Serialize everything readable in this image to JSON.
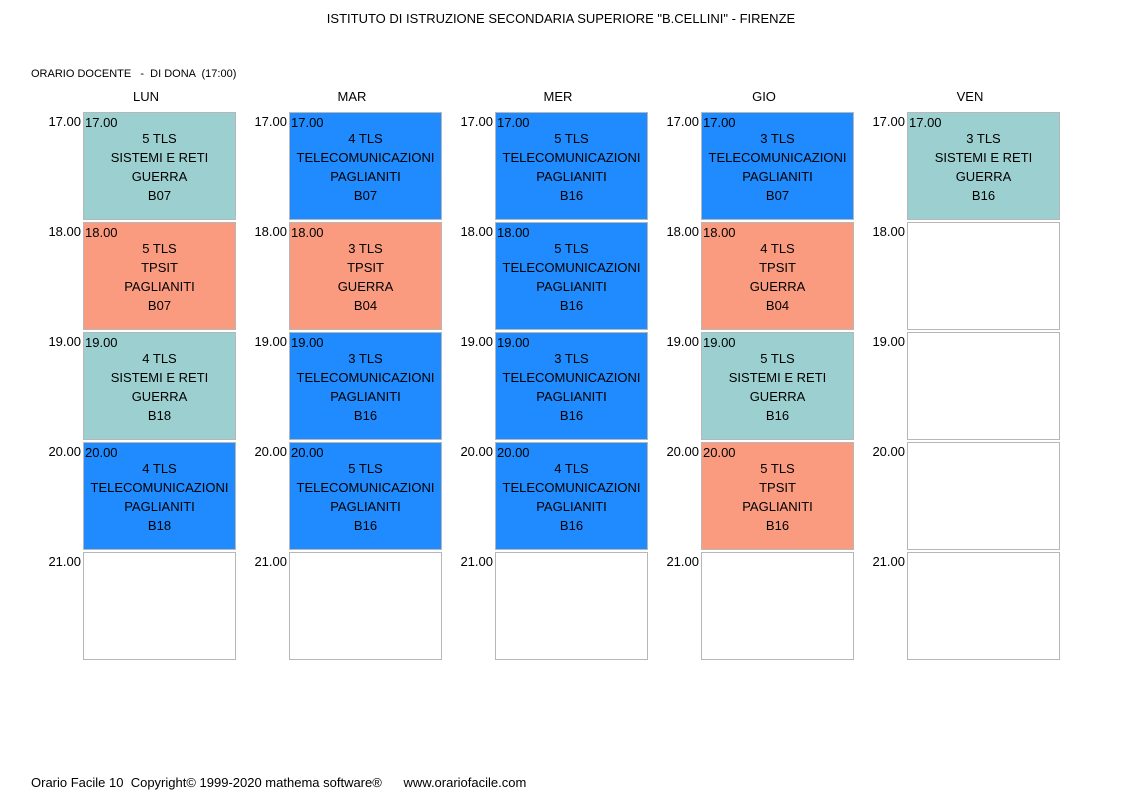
{
  "header": {
    "title": "ISTITUTO DI ISTRUZIONE SECONDARIA SUPERIORE \"B.CELLINI\" - FIRENZE",
    "subtitle": "ORARIO DOCENTE   -  DI DONA  (17:00)"
  },
  "footer": {
    "text": "Orario Facile 10  Copyright© 1999-2020 mathema software®      www.orariofacile.com"
  },
  "times": [
    "17.00",
    "18.00",
    "19.00",
    "20.00",
    "21.00"
  ],
  "colors": {
    "sistemi": "#9ccfcf",
    "tpsit": "#fa9b80",
    "telecomunicazioni": "#1f8bff",
    "border": "#b7b7b7"
  },
  "days": [
    {
      "name": "LUN",
      "slots": [
        {
          "time": "17.00",
          "class": "5 TLS",
          "subject": "SISTEMI E RETI",
          "teacher": "GUERRA",
          "room": "B07",
          "type": "ses"
        },
        {
          "time": "18.00",
          "class": "5 TLS",
          "subject": "TPSIT",
          "teacher": "PAGLIANITI",
          "room": "B07",
          "type": "tpsit"
        },
        {
          "time": "19.00",
          "class": "4 TLS",
          "subject": "SISTEMI E RETI",
          "teacher": "GUERRA",
          "room": "B18",
          "type": "ses"
        },
        {
          "time": "20.00",
          "class": "4 TLS",
          "subject": "TELECOMUNICAZIONI",
          "teacher": "PAGLIANITI",
          "room": "B18",
          "type": "tele"
        },
        null
      ]
    },
    {
      "name": "MAR",
      "slots": [
        {
          "time": "17.00",
          "class": "4 TLS",
          "subject": "TELECOMUNICAZIONI",
          "teacher": "PAGLIANITI",
          "room": "B07",
          "type": "tele"
        },
        {
          "time": "18.00",
          "class": "3 TLS",
          "subject": "TPSIT",
          "teacher": "GUERRA",
          "room": "B04",
          "type": "tpsit"
        },
        {
          "time": "19.00",
          "class": "3 TLS",
          "subject": "TELECOMUNICAZIONI",
          "teacher": "PAGLIANITI",
          "room": "B16",
          "type": "tele"
        },
        {
          "time": "20.00",
          "class": "5 TLS",
          "subject": "TELECOMUNICAZIONI",
          "teacher": "PAGLIANITI",
          "room": "B16",
          "type": "tele"
        },
        null
      ]
    },
    {
      "name": "MER",
      "slots": [
        {
          "time": "17.00",
          "class": "5 TLS",
          "subject": "TELECOMUNICAZIONI",
          "teacher": "PAGLIANITI",
          "room": "B16",
          "type": "tele"
        },
        {
          "time": "18.00",
          "class": "5 TLS",
          "subject": "TELECOMUNICAZIONI",
          "teacher": "PAGLIANITI",
          "room": "B16",
          "type": "tele"
        },
        {
          "time": "19.00",
          "class": "3 TLS",
          "subject": "TELECOMUNICAZIONI",
          "teacher": "PAGLIANITI",
          "room": "B16",
          "type": "tele"
        },
        {
          "time": "20.00",
          "class": "4 TLS",
          "subject": "TELECOMUNICAZIONI",
          "teacher": "PAGLIANITI",
          "room": "B16",
          "type": "tele"
        },
        null
      ]
    },
    {
      "name": "GIO",
      "slots": [
        {
          "time": "17.00",
          "class": "3 TLS",
          "subject": "TELECOMUNICAZIONI",
          "teacher": "PAGLIANITI",
          "room": "B07",
          "type": "tele"
        },
        {
          "time": "18.00",
          "class": "4 TLS",
          "subject": "TPSIT",
          "teacher": "GUERRA",
          "room": "B04",
          "type": "tpsit"
        },
        {
          "time": "19.00",
          "class": "5 TLS",
          "subject": "SISTEMI E RETI",
          "teacher": "GUERRA",
          "room": "B16",
          "type": "ses"
        },
        {
          "time": "20.00",
          "class": "5 TLS",
          "subject": "TPSIT",
          "teacher": "PAGLIANITI",
          "room": "B16",
          "type": "tpsit"
        },
        null
      ]
    },
    {
      "name": "VEN",
      "slots": [
        {
          "time": "17.00",
          "class": "3 TLS",
          "subject": "SISTEMI E RETI",
          "teacher": "GUERRA",
          "room": "B16",
          "type": "ses"
        },
        null,
        null,
        null,
        null
      ]
    }
  ]
}
